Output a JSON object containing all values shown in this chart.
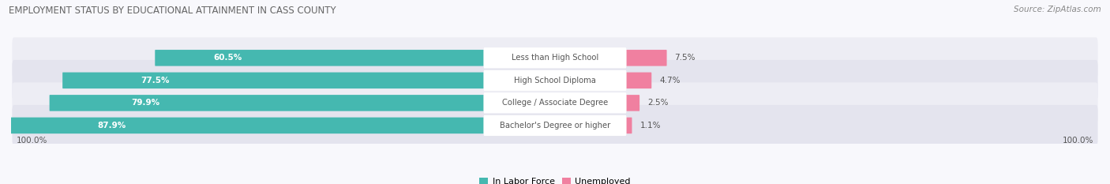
{
  "title": "EMPLOYMENT STATUS BY EDUCATIONAL ATTAINMENT IN CASS COUNTY",
  "source": "Source: ZipAtlas.com",
  "categories": [
    "Less than High School",
    "High School Diploma",
    "College / Associate Degree",
    "Bachelor's Degree or higher"
  ],
  "in_labor_force": [
    60.5,
    77.5,
    79.9,
    87.9
  ],
  "unemployed": [
    7.5,
    4.7,
    2.5,
    1.1
  ],
  "labor_force_color": "#45b8b0",
  "unemployed_color": "#f080a0",
  "row_bg_even": "#ededf4",
  "row_bg_odd": "#e4e4ee",
  "label_bg_color": "#ffffff",
  "text_color_white": "#ffffff",
  "text_color_dark": "#555555",
  "title_color": "#666666",
  "source_color": "#888888",
  "axis_label": "100.0%",
  "legend_labor": "In Labor Force",
  "legend_unemployed": "Unemployed",
  "fig_width": 14.06,
  "fig_height": 2.33,
  "bg_color": "#f8f8fc"
}
